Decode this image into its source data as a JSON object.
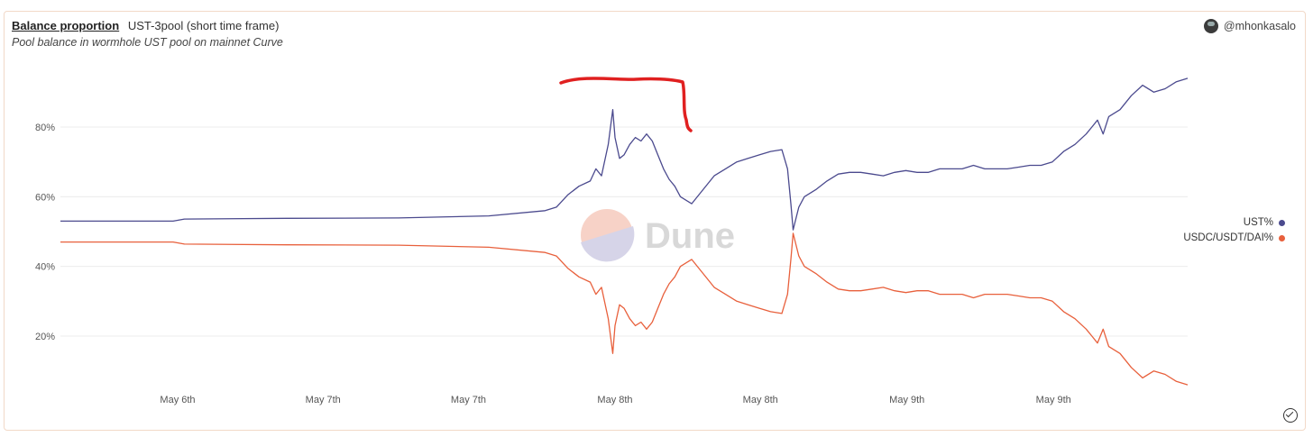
{
  "header": {
    "title": "Balance proportion",
    "query_name": "UST-3pool (short time frame)",
    "subtitle": "Pool balance in wormhole UST pool on mainnet Curve",
    "author": "@mhonkasalo"
  },
  "watermark": "Dune",
  "colors": {
    "ust": "#4b4a8e",
    "other": "#e8603c",
    "annotation": "#e02020",
    "grid": "#ececec"
  },
  "icons": {
    "avatar": "avatar-icon",
    "check": "check-circle-icon"
  },
  "chart_data": {
    "type": "line",
    "title": "Balance proportion",
    "xlabel": "",
    "ylabel": "",
    "ylim": [
      5,
      95
    ],
    "xlim": [
      0,
      100
    ],
    "y_ticks": [
      20,
      40,
      60,
      80
    ],
    "y_tick_labels": [
      "20%",
      "40%",
      "60%",
      "80%"
    ],
    "x_ticks": [
      10.4,
      23.3,
      36.2,
      49.2,
      62.1,
      75.1,
      88.1
    ],
    "x_tick_labels": [
      "May 6th",
      "May 7th",
      "May 7th",
      "May 8th",
      "May 8th",
      "May 9th",
      "May 9th"
    ],
    "legend_position": "right",
    "grid": true,
    "series": [
      {
        "name": "UST%",
        "x": [
          0,
          5,
          10,
          11,
          20,
          30,
          38,
          43,
          44,
          45,
          46,
          47,
          47.5,
          48,
          48.6,
          49,
          49.2,
          49.6,
          50,
          50.5,
          51,
          51.5,
          52,
          52.5,
          53,
          53.5,
          54,
          54.5,
          55,
          56,
          57,
          58,
          59,
          60,
          61,
          62,
          63,
          64,
          64.5,
          64.8,
          65,
          65.5,
          66,
          67,
          68,
          69,
          70,
          71,
          72,
          73,
          74,
          75,
          76,
          77,
          78,
          79,
          80,
          81,
          82,
          83,
          84,
          85,
          86,
          87,
          88,
          89,
          90,
          91,
          91.5,
          92,
          92.5,
          93,
          94,
          95,
          96,
          97,
          98,
          99,
          100
        ],
        "y": [
          53,
          53,
          53,
          53.6,
          53.8,
          53.9,
          54.5,
          56,
          57,
          60.5,
          63,
          64.5,
          68,
          66,
          75,
          85,
          77,
          71,
          72,
          75,
          77,
          76,
          78,
          76,
          72,
          68,
          65,
          63,
          60,
          58,
          62,
          66,
          68,
          70,
          71,
          72,
          73,
          73.5,
          68,
          58,
          50.5,
          57,
          60,
          62,
          64.5,
          66.5,
          67,
          67,
          66.5,
          66,
          67,
          67.5,
          67,
          67,
          68,
          68,
          68,
          69,
          68,
          68,
          68,
          68.5,
          69,
          69,
          70,
          73,
          75,
          78,
          80,
          82,
          78,
          83,
          85,
          89,
          92,
          90,
          91,
          93,
          94
        ]
      },
      {
        "name": "USDC/USDT/DAI%",
        "x": [
          0,
          5,
          10,
          11,
          20,
          30,
          38,
          43,
          44,
          45,
          46,
          47,
          47.5,
          48,
          48.6,
          49,
          49.2,
          49.6,
          50,
          50.5,
          51,
          51.5,
          52,
          52.5,
          53,
          53.5,
          54,
          54.5,
          55,
          56,
          57,
          58,
          59,
          60,
          61,
          62,
          63,
          64,
          64.5,
          64.8,
          65,
          65.5,
          66,
          67,
          68,
          69,
          70,
          71,
          72,
          73,
          74,
          75,
          76,
          77,
          78,
          79,
          80,
          81,
          82,
          83,
          84,
          85,
          86,
          87,
          88,
          89,
          90,
          91,
          91.5,
          92,
          92.5,
          93,
          94,
          95,
          96,
          97,
          98,
          99,
          100
        ],
        "y": [
          47,
          47,
          47,
          46.4,
          46.2,
          46.1,
          45.5,
          44,
          43,
          39.5,
          37,
          35.5,
          32,
          34,
          25,
          15,
          23,
          29,
          28,
          25,
          23,
          24,
          22,
          24,
          28,
          32,
          35,
          37,
          40,
          42,
          38,
          34,
          32,
          30,
          29,
          28,
          27,
          26.5,
          32,
          42,
          49.5,
          43,
          40,
          38,
          35.5,
          33.5,
          33,
          33,
          33.5,
          34,
          33,
          32.5,
          33,
          33,
          32,
          32,
          32,
          31,
          32,
          32,
          32,
          31.5,
          31,
          31,
          30,
          27,
          25,
          22,
          20,
          18,
          22,
          17,
          15,
          11,
          8,
          10,
          9,
          7,
          6
        ]
      }
    ]
  }
}
